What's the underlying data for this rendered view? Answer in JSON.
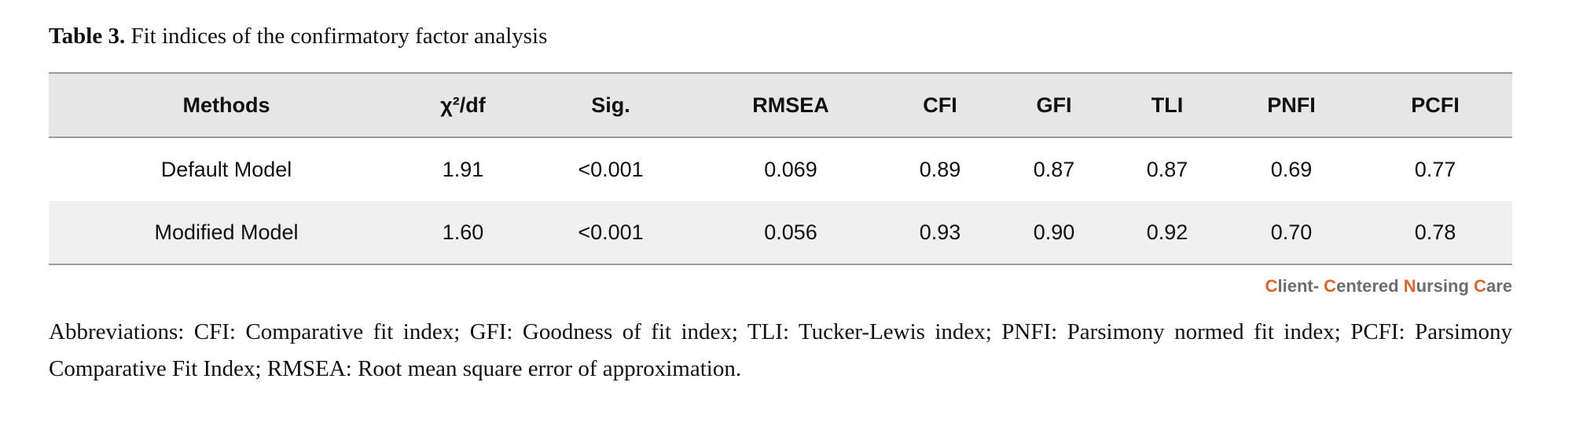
{
  "caption": {
    "label": "Table 3.",
    "text": "Fit indices of the confirmatory factor analysis"
  },
  "table": {
    "headers": [
      "Methods",
      "χ²/df",
      "Sig.",
      "RMSEA",
      "CFI",
      "GFI",
      "TLI",
      "PNFI",
      "PCFI"
    ],
    "rows": [
      [
        "Default Model",
        "1.91",
        "<0.001",
        "0.069",
        "0.89",
        "0.87",
        "0.87",
        "0.69",
        "0.77"
      ],
      [
        "Modified Model",
        "1.60",
        "<0.001",
        "0.056",
        "0.93",
        "0.90",
        "0.92",
        "0.70",
        "0.78"
      ]
    ]
  },
  "brand": "Client- Centered Nursing Care",
  "note": "Abbreviations: CFI: Comparative fit index; GFI: Goodness of fit index; TLI: Tucker-Lewis index; PNFI: Parsimony normed fit index; PCFI: Parsimony Comparative Fit Index; RMSEA: Root mean square error of approximation."
}
